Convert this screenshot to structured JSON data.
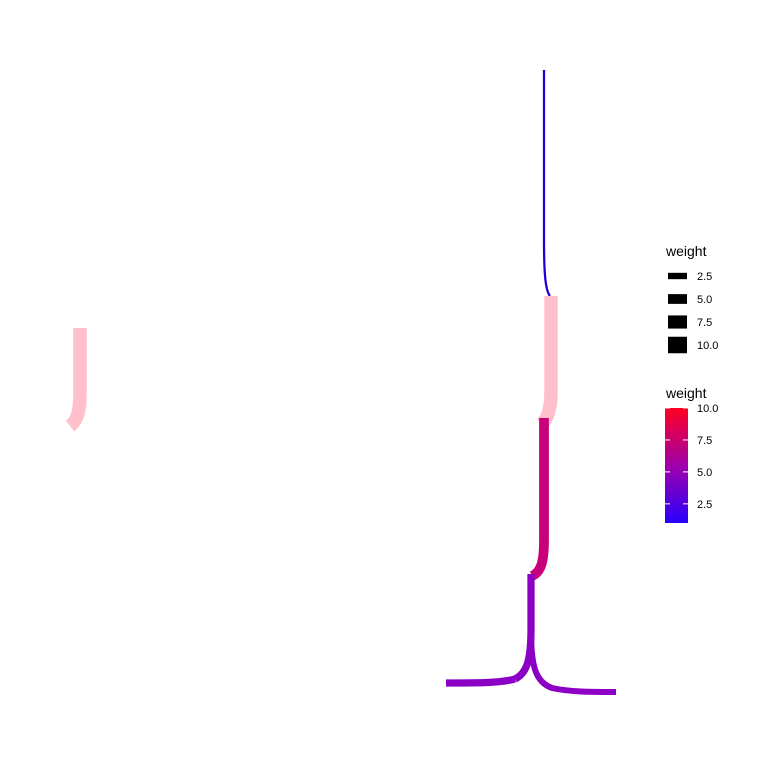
{
  "legends": {
    "width_legend": {
      "title": "weight",
      "items": [
        {
          "label": "2.5",
          "value": 2.5
        },
        {
          "label": "5.0",
          "value": 5.0
        },
        {
          "label": "7.5",
          "value": 7.5
        },
        {
          "label": "10.0",
          "value": 10.0
        }
      ]
    },
    "color_legend": {
      "title": "weight",
      "min_value": 1,
      "max_value": 10,
      "low_color": "#2a00ff",
      "high_color": "#ff0022",
      "ticks": [
        {
          "label": "10.0",
          "value": 10.0
        },
        {
          "label": "7.5",
          "value": 7.5
        },
        {
          "label": "5.0",
          "value": 5.0
        },
        {
          "label": "2.5",
          "value": 2.5
        }
      ]
    }
  },
  "chart_data": {
    "type": "network",
    "edge_attribute": "weight",
    "edges": [
      {
        "name": "edge-blue-top",
        "weight": 1,
        "color": "#1a00d6"
      },
      {
        "name": "edge-pink-right",
        "weight": 10,
        "color": "#ffc0cb"
      },
      {
        "name": "edge-magenta",
        "weight": 7,
        "color": "#c8007a"
      },
      {
        "name": "edge-purple-stem",
        "weight": 5,
        "color": "#8b00c4"
      },
      {
        "name": "edge-purple-left",
        "weight": 5,
        "color": "#8b00c4"
      },
      {
        "name": "edge-purple-right",
        "weight": 4,
        "color": "#8b00c4"
      },
      {
        "name": "edge-pink-left",
        "weight": 10,
        "color": "#ffc0cb"
      }
    ]
  }
}
